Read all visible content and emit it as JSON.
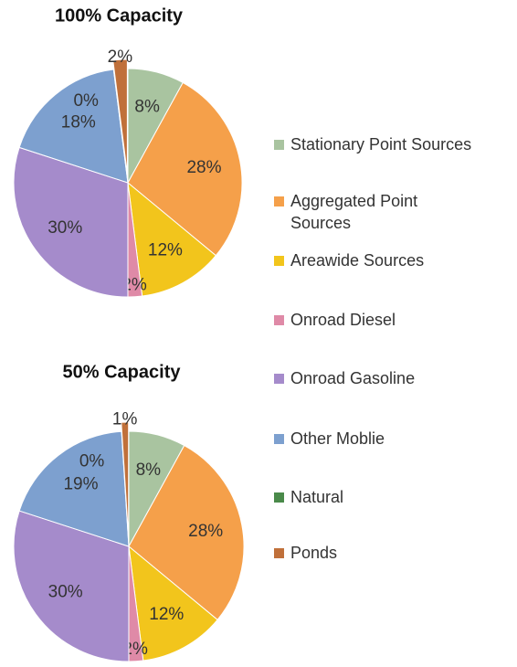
{
  "legend": {
    "names": [
      "Stationary Point Sources",
      "Aggregated Point Sources",
      "Areawide Sources",
      "Onroad Diesel",
      "Onroad Gasoline",
      "Other Moblie",
      "Natural",
      "Ponds"
    ],
    "colors": [
      "#a9c4a0",
      "#f5a04a",
      "#f2c51c",
      "#df8aa7",
      "#a58bcb",
      "#7da0cf",
      "#4a8a4a",
      "#c0703a"
    ]
  },
  "chart_data": [
    {
      "type": "pie",
      "title": "100% Capacity",
      "values": [
        8,
        28,
        12,
        2,
        30,
        18,
        0,
        2
      ],
      "value_labels": [
        "8%",
        "28%",
        "12%",
        "2%",
        "30%",
        "18%",
        "0%",
        "2%"
      ]
    },
    {
      "type": "pie",
      "title": "50% Capacity",
      "values": [
        8,
        28,
        12,
        2,
        30,
        19,
        0,
        1
      ],
      "value_labels": [
        "8%",
        "28%",
        "12%",
        "2%",
        "30%",
        "19%",
        "0%",
        "1%"
      ]
    }
  ]
}
